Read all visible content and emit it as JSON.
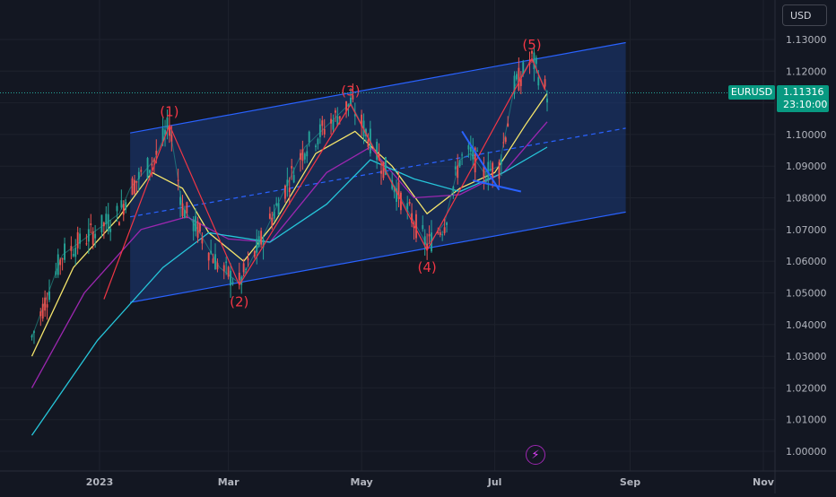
{
  "header": {
    "currency": "USD"
  },
  "price_tag": {
    "symbol": "EURUSD",
    "price": "1.11316",
    "countdown": "23:10:00"
  },
  "colors": {
    "background": "#131722",
    "grid": "#1e222d",
    "up": "#26a69a",
    "down": "#ef5350",
    "channel_line": "#2962ff",
    "channel_fill": "#1c3a7a",
    "wave_line": "#f23645",
    "ma_fast": "#f5e56b",
    "ma_mid": "#9c27b0",
    "ma_slow": "#26c6da"
  },
  "chart_data": {
    "type": "line",
    "title": "",
    "xlabel": "",
    "ylabel": "",
    "x_ticks": [
      "2023",
      "Mar",
      "May",
      "Jul",
      "Sep",
      "Nov"
    ],
    "y_ticks": [
      "1.13000",
      "1.12000",
      "1.11000",
      "1.10000",
      "1.09000",
      "1.08000",
      "1.07000",
      "1.06000",
      "1.05000",
      "1.04000",
      "1.03000",
      "1.02000",
      "1.01000",
      "1.00000"
    ],
    "ylim": [
      0.9955,
      1.1355
    ],
    "current_price": 1.11316,
    "price_path": [
      {
        "x": "2022-12-01",
        "y": 1.036
      },
      {
        "x": "2022-12-15",
        "y": 1.062
      },
      {
        "x": "2022-12-31",
        "y": 1.07
      },
      {
        "x": "2023-01-10",
        "y": 1.075
      },
      {
        "x": "2023-01-15",
        "y": 1.083
      },
      {
        "x": "2023-01-26",
        "y": 1.092
      },
      {
        "x": "2023-02-02",
        "y": 1.103
      },
      {
        "x": "2023-02-08",
        "y": 1.077
      },
      {
        "x": "2023-02-15",
        "y": 1.07
      },
      {
        "x": "2023-02-25",
        "y": 1.058
      },
      {
        "x": "2023-03-06",
        "y": 1.053
      },
      {
        "x": "2023-03-15",
        "y": 1.065
      },
      {
        "x": "2023-03-25",
        "y": 1.08
      },
      {
        "x": "2023-04-05",
        "y": 1.096
      },
      {
        "x": "2023-04-20",
        "y": 1.106
      },
      {
        "x": "2023-04-26",
        "y": 1.11
      },
      {
        "x": "2023-05-05",
        "y": 1.098
      },
      {
        "x": "2023-05-15",
        "y": 1.085
      },
      {
        "x": "2023-05-31",
        "y": 1.065
      },
      {
        "x": "2023-06-08",
        "y": 1.072
      },
      {
        "x": "2023-06-15",
        "y": 1.092
      },
      {
        "x": "2023-06-20",
        "y": 1.094
      },
      {
        "x": "2023-06-26",
        "y": 1.088
      },
      {
        "x": "2023-07-03",
        "y": 1.09
      },
      {
        "x": "2023-07-10",
        "y": 1.115
      },
      {
        "x": "2023-07-18",
        "y": 1.124
      },
      {
        "x": "2023-07-25",
        "y": 1.113
      }
    ],
    "channel": {
      "upper": [
        {
          "x": "2023-01-15",
          "y": 1.1005
        },
        {
          "x": "2023-08-30",
          "y": 1.129
        }
      ],
      "middle": [
        {
          "x": "2023-01-15",
          "y": 1.074
        },
        {
          "x": "2023-08-30",
          "y": 1.102
        }
      ],
      "lower": [
        {
          "x": "2023-01-15",
          "y": 1.047
        },
        {
          "x": "2023-08-30",
          "y": 1.0755
        }
      ]
    },
    "elliott_waves": [
      {
        "label": "(1)",
        "x": "2023-02-02",
        "y": 1.103
      },
      {
        "label": "(2)",
        "x": "2023-03-06",
        "y": 1.0525
      },
      {
        "label": "(3)",
        "x": "2023-04-26",
        "y": 1.1095
      },
      {
        "label": "(4)",
        "x": "2023-05-31",
        "y": 1.0635
      },
      {
        "label": "(5)",
        "x": "2023-07-18",
        "y": 1.124
      }
    ],
    "wave_path": [
      {
        "x": "2023-01-03",
        "y": 1.048
      },
      {
        "x": "2023-02-02",
        "y": 1.103
      },
      {
        "x": "2023-03-06",
        "y": 1.0525
      },
      {
        "x": "2023-04-26",
        "y": 1.1095
      },
      {
        "x": "2023-05-31",
        "y": 1.0635
      },
      {
        "x": "2023-07-18",
        "y": 1.124
      },
      {
        "x": "2023-07-24",
        "y": 1.114
      }
    ],
    "triangle": [
      {
        "x": "2023-06-16",
        "y": 1.101
      },
      {
        "x": "2023-07-03",
        "y": 1.0825
      },
      {
        "x": "2023-07-13",
        "y": 1.082
      },
      {
        "x": "2023-06-21",
        "y": 1.0855
      }
    ],
    "moving_averages": [
      {
        "key": "ma_fast",
        "points": [
          {
            "x": "2022-12-01",
            "y": 1.03
          },
          {
            "x": "2022-12-20",
            "y": 1.058
          },
          {
            "x": "2023-01-10",
            "y": 1.074
          },
          {
            "x": "2023-01-25",
            "y": 1.088
          },
          {
            "x": "2023-02-08",
            "y": 1.083
          },
          {
            "x": "2023-02-20",
            "y": 1.069
          },
          {
            "x": "2023-03-08",
            "y": 1.06
          },
          {
            "x": "2023-03-22",
            "y": 1.072
          },
          {
            "x": "2023-04-10",
            "y": 1.094
          },
          {
            "x": "2023-04-28",
            "y": 1.101
          },
          {
            "x": "2023-05-15",
            "y": 1.09
          },
          {
            "x": "2023-05-31",
            "y": 1.075
          },
          {
            "x": "2023-06-15",
            "y": 1.083
          },
          {
            "x": "2023-07-01",
            "y": 1.088
          },
          {
            "x": "2023-07-15",
            "y": 1.103
          },
          {
            "x": "2023-07-25",
            "y": 1.113
          }
        ]
      },
      {
        "key": "ma_mid",
        "points": [
          {
            "x": "2022-12-01",
            "y": 1.02
          },
          {
            "x": "2022-12-25",
            "y": 1.05
          },
          {
            "x": "2023-01-20",
            "y": 1.07
          },
          {
            "x": "2023-02-10",
            "y": 1.074
          },
          {
            "x": "2023-03-01",
            "y": 1.067
          },
          {
            "x": "2023-03-20",
            "y": 1.066
          },
          {
            "x": "2023-04-15",
            "y": 1.088
          },
          {
            "x": "2023-05-05",
            "y": 1.096
          },
          {
            "x": "2023-05-25",
            "y": 1.08
          },
          {
            "x": "2023-06-15",
            "y": 1.081
          },
          {
            "x": "2023-07-05",
            "y": 1.088
          },
          {
            "x": "2023-07-25",
            "y": 1.104
          }
        ]
      },
      {
        "key": "ma_slow",
        "points": [
          {
            "x": "2022-12-01",
            "y": 1.005
          },
          {
            "x": "2022-12-31",
            "y": 1.035
          },
          {
            "x": "2023-01-30",
            "y": 1.058
          },
          {
            "x": "2023-02-20",
            "y": 1.069
          },
          {
            "x": "2023-03-20",
            "y": 1.066
          },
          {
            "x": "2023-04-15",
            "y": 1.078
          },
          {
            "x": "2023-05-05",
            "y": 1.092
          },
          {
            "x": "2023-05-25",
            "y": 1.086
          },
          {
            "x": "2023-06-15",
            "y": 1.082
          },
          {
            "x": "2023-07-05",
            "y": 1.088
          },
          {
            "x": "2023-07-25",
            "y": 1.096
          }
        ]
      }
    ],
    "grid": true,
    "legend": "none"
  }
}
